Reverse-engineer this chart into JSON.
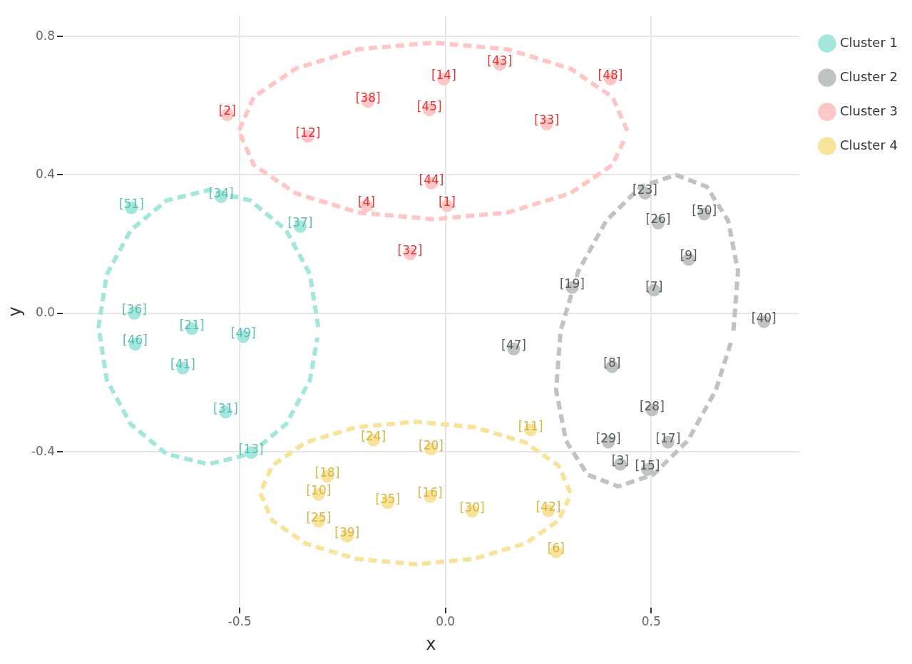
{
  "chart_data": {
    "type": "scatter",
    "xlabel": "x",
    "ylabel": "y",
    "xlim": [
      -0.93,
      0.86
    ],
    "ylim": [
      -0.85,
      0.86
    ],
    "xticks": [
      -0.5,
      {
        "value": 0,
        "label": "0.0"
      },
      0.5
    ],
    "yticks": [
      -0.4,
      {
        "value": 0,
        "label": "0.0"
      },
      0.4,
      0.8
    ],
    "grid": true,
    "legend": "top right",
    "marker": "circle",
    "series": [
      {
        "name": "Cluster 1",
        "color": "#a3e6de",
        "x": [
          -0.763,
          -0.545,
          -0.353,
          -0.756,
          -0.616,
          -0.491,
          -0.754,
          -0.638,
          -0.534,
          -0.472
        ],
        "values": [
          0.305,
          0.337,
          0.251,
          0.0,
          -0.044,
          -0.067,
          -0.089,
          -0.158,
          -0.285,
          -0.402
        ]
      },
      {
        "name": "Cluster 2",
        "color": "#bfc3c4",
        "x": [
          0.485,
          0.517,
          0.629,
          0.591,
          0.308,
          0.507,
          0.774,
          0.166,
          0.405,
          0.502,
          0.396,
          0.541,
          0.425,
          0.491
        ],
        "values": [
          0.347,
          0.261,
          0.287,
          0.156,
          0.075,
          0.067,
          -0.024,
          -0.103,
          -0.154,
          -0.279,
          -0.372,
          -0.372,
          -0.436,
          -0.451
        ]
      },
      {
        "name": "Cluster 3",
        "color": "#ffc6c6",
        "x": [
          -0.53,
          -0.188,
          -0.039,
          -0.004,
          0.132,
          0.401,
          0.246,
          -0.334,
          -0.034,
          -0.192,
          0.004,
          -0.086
        ],
        "values": [
          0.574,
          0.612,
          0.588,
          0.677,
          0.719,
          0.677,
          0.547,
          0.511,
          0.376,
          0.311,
          0.311,
          0.172
        ]
      },
      {
        "name": "Cluster 4",
        "color": "#f8e39b",
        "x": [
          0.207,
          -0.175,
          -0.035,
          -0.287,
          -0.308,
          -0.14,
          -0.037,
          0.065,
          0.25,
          -0.308,
          -0.239,
          0.269
        ],
        "values": [
          -0.337,
          -0.366,
          -0.392,
          -0.471,
          -0.523,
          -0.547,
          -0.529,
          -0.572,
          -0.57,
          -0.6,
          -0.644,
          -0.689
        ]
      },
      {
        "color": "#a3e6de",
        "type": "line",
        "line_style": "dashed",
        "marker": "none",
        "x": [
          -0.309,
          -0.329,
          -0.387,
          -0.474,
          -0.576,
          -0.678,
          -0.765,
          -0.823,
          -0.843,
          -0.823,
          -0.765,
          -0.678,
          -0.576,
          -0.474,
          -0.387,
          -0.329,
          -0.311
        ],
        "values": [
          -0.04,
          0.112,
          0.24,
          0.326,
          0.356,
          0.326,
          0.24,
          0.112,
          -0.04,
          -0.192,
          -0.32,
          -0.406,
          -0.436,
          -0.406,
          -0.32,
          -0.192,
          -0.07
        ]
      },
      {
        "color": "#bfc3c4",
        "type": "line",
        "line_style": "dashed",
        "marker": "none",
        "x": [
          0.7,
          0.711,
          0.687,
          0.635,
          0.56,
          0.475,
          0.391,
          0.323,
          0.28,
          0.269,
          0.293,
          0.345,
          0.42,
          0.505,
          0.589,
          0.657,
          0.695
        ],
        "values": [
          -0.05,
          0.122,
          0.268,
          0.366,
          0.4,
          0.366,
          0.268,
          0.122,
          -0.05,
          -0.222,
          -0.368,
          -0.466,
          -0.5,
          -0.466,
          -0.368,
          -0.222,
          -0.08
        ]
      },
      {
        "color": "#ffc6c6",
        "type": "line",
        "line_style": "dashed",
        "marker": "none",
        "x": [
          0.442,
          0.406,
          0.304,
          0.151,
          -0.03,
          -0.211,
          -0.364,
          -0.466,
          -0.502,
          -0.466,
          -0.364,
          -0.211,
          -0.03,
          0.151,
          0.304,
          0.406,
          0.438
        ],
        "values": [
          0.527,
          0.625,
          0.707,
          0.763,
          0.782,
          0.763,
          0.707,
          0.625,
          0.527,
          0.429,
          0.347,
          0.291,
          0.272,
          0.291,
          0.347,
          0.429,
          0.51
        ]
      },
      {
        "color": "#f8e39b",
        "type": "line",
        "line_style": "dashed",
        "marker": "none",
        "x": [
          0.304,
          0.275,
          0.194,
          0.071,
          -0.073,
          -0.217,
          -0.34,
          -0.421,
          -0.45,
          -0.421,
          -0.34,
          -0.217,
          -0.073,
          0.071,
          0.194,
          0.275,
          0.3
        ],
        "values": [
          -0.519,
          -0.44,
          -0.373,
          -0.329,
          -0.313,
          -0.329,
          -0.373,
          -0.44,
          -0.519,
          -0.598,
          -0.665,
          -0.709,
          -0.725,
          -0.709,
          -0.665,
          -0.598,
          -0.535
        ]
      }
    ],
    "annotations": [
      {
        "text": "[51]",
        "x": -0.763,
        "y": 0.305
      },
      {
        "text": "[34]",
        "x": -0.545,
        "y": 0.337
      },
      {
        "text": "[37]",
        "x": -0.353,
        "y": 0.251
      },
      {
        "text": "[36]",
        "x": -0.756,
        "y": 0.0
      },
      {
        "text": "[21]",
        "x": -0.616,
        "y": -0.044
      },
      {
        "text": "[49]",
        "x": -0.491,
        "y": -0.067
      },
      {
        "text": "[46]",
        "x": -0.754,
        "y": -0.089
      },
      {
        "text": "[41]",
        "x": -0.638,
        "y": -0.158
      },
      {
        "text": "[31]",
        "x": -0.534,
        "y": -0.285
      },
      {
        "text": "[13]",
        "x": -0.472,
        "y": -0.402
      },
      {
        "text": "[23]",
        "x": 0.485,
        "y": 0.347
      },
      {
        "text": "[26]",
        "x": 0.517,
        "y": 0.261
      },
      {
        "text": "[50]",
        "x": 0.629,
        "y": 0.287
      },
      {
        "text": "[9]",
        "x": 0.591,
        "y": 0.156
      },
      {
        "text": "[19]",
        "x": 0.308,
        "y": 0.075
      },
      {
        "text": "[7]",
        "x": 0.507,
        "y": 0.067
      },
      {
        "text": "[40]",
        "x": 0.774,
        "y": -0.024
      },
      {
        "text": "[47]",
        "x": 0.166,
        "y": -0.103
      },
      {
        "text": "[8]",
        "x": 0.405,
        "y": -0.154
      },
      {
        "text": "[28]",
        "x": 0.502,
        "y": -0.279
      },
      {
        "text": "[29]",
        "x": 0.396,
        "y": -0.372
      },
      {
        "text": "[17]",
        "x": 0.541,
        "y": -0.372
      },
      {
        "text": "[3]",
        "x": 0.425,
        "y": -0.436
      },
      {
        "text": "[15]",
        "x": 0.491,
        "y": -0.451
      },
      {
        "text": "[2]",
        "x": -0.53,
        "y": 0.574
      },
      {
        "text": "[38]",
        "x": -0.188,
        "y": 0.612
      },
      {
        "text": "[45]",
        "x": -0.039,
        "y": 0.588
      },
      {
        "text": "[14]",
        "x": -0.004,
        "y": 0.677
      },
      {
        "text": "[43]",
        "x": 0.132,
        "y": 0.719
      },
      {
        "text": "[48]",
        "x": 0.401,
        "y": 0.677
      },
      {
        "text": "[33]",
        "x": 0.246,
        "y": 0.547
      },
      {
        "text": "[12]",
        "x": -0.334,
        "y": 0.511
      },
      {
        "text": "[44]",
        "x": -0.034,
        "y": 0.376
      },
      {
        "text": "[4]",
        "x": -0.192,
        "y": 0.311
      },
      {
        "text": "[1]",
        "x": 0.004,
        "y": 0.311
      },
      {
        "text": "[32]",
        "x": -0.086,
        "y": 0.172
      },
      {
        "text": "[11]",
        "x": 0.207,
        "y": -0.337
      },
      {
        "text": "[24]",
        "x": -0.175,
        "y": -0.366
      },
      {
        "text": "[20]",
        "x": -0.035,
        "y": -0.392
      },
      {
        "text": "[18]",
        "x": -0.287,
        "y": -0.471
      },
      {
        "text": "[10]",
        "x": -0.308,
        "y": -0.523
      },
      {
        "text": "[35]",
        "x": -0.14,
        "y": -0.547
      },
      {
        "text": "[16]",
        "x": -0.037,
        "y": -0.529
      },
      {
        "text": "[30]",
        "x": 0.065,
        "y": -0.572
      },
      {
        "text": "[42]",
        "x": 0.25,
        "y": -0.57
      },
      {
        "text": "[25]",
        "x": -0.308,
        "y": -0.6
      },
      {
        "text": "[39]",
        "x": -0.239,
        "y": -0.644
      },
      {
        "text": "[6]",
        "x": 0.269,
        "y": -0.689
      }
    ]
  }
}
